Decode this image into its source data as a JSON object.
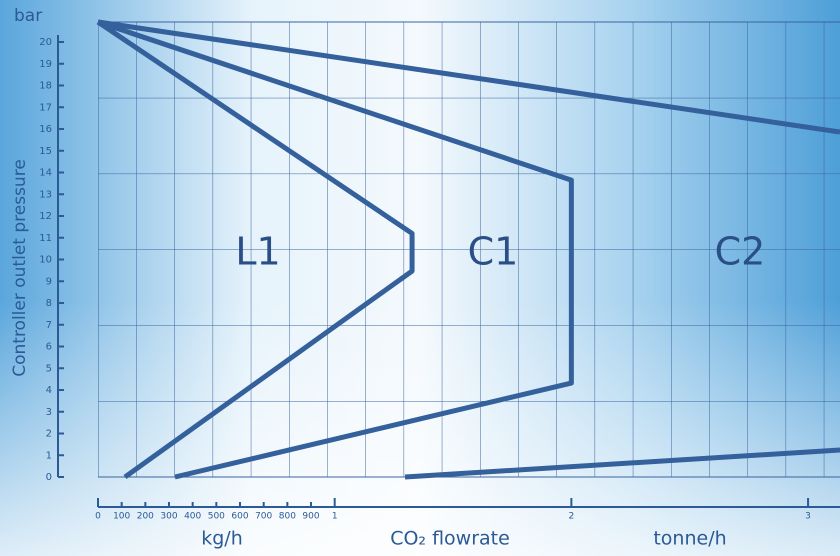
{
  "chart_data": {
    "type": "line",
    "y_unit": "bar",
    "y_label": "Controller outlet pressure",
    "x_labels": [
      "kg/h",
      "CO₂ flowrate",
      "tonne/h"
    ],
    "xlim": [
      0,
      3.135
    ],
    "ylim": [
      0,
      20.92
    ],
    "xticks": [
      0,
      {
        "value": 0.1,
        "label": "100"
      },
      {
        "value": 0.2,
        "label": "200"
      },
      {
        "value": 0.3,
        "label": "300"
      },
      {
        "value": 0.4,
        "label": "400"
      },
      {
        "value": 0.5,
        "label": "500"
      },
      {
        "value": 0.6,
        "label": "600"
      },
      {
        "value": 0.7,
        "label": "700"
      },
      {
        "value": 0.8,
        "label": "800"
      },
      {
        "value": 0.9,
        "label": "900"
      },
      1,
      2,
      3
    ],
    "yticks": [
      0,
      1,
      2,
      3,
      4,
      5,
      6,
      7,
      8,
      9,
      10,
      11,
      12,
      13,
      14,
      15,
      16,
      17,
      18,
      19,
      20
    ],
    "color": "#34609c",
    "series": [
      {
        "name": "L1",
        "x": [
          0,
          1.327,
          1.327,
          0.114
        ],
        "values": [
          20.92,
          11.2,
          9.47,
          0
        ]
      },
      {
        "name": "C1",
        "x": [
          0,
          2.0,
          2.0,
          0.325
        ],
        "values": [
          20.92,
          13.65,
          4.32,
          0
        ]
      },
      {
        "name": "C2",
        "x": [
          0,
          3.135,
          null,
          3.135,
          1.297
        ],
        "values": [
          20.92,
          15.86,
          null,
          1.24,
          0
        ]
      }
    ]
  }
}
